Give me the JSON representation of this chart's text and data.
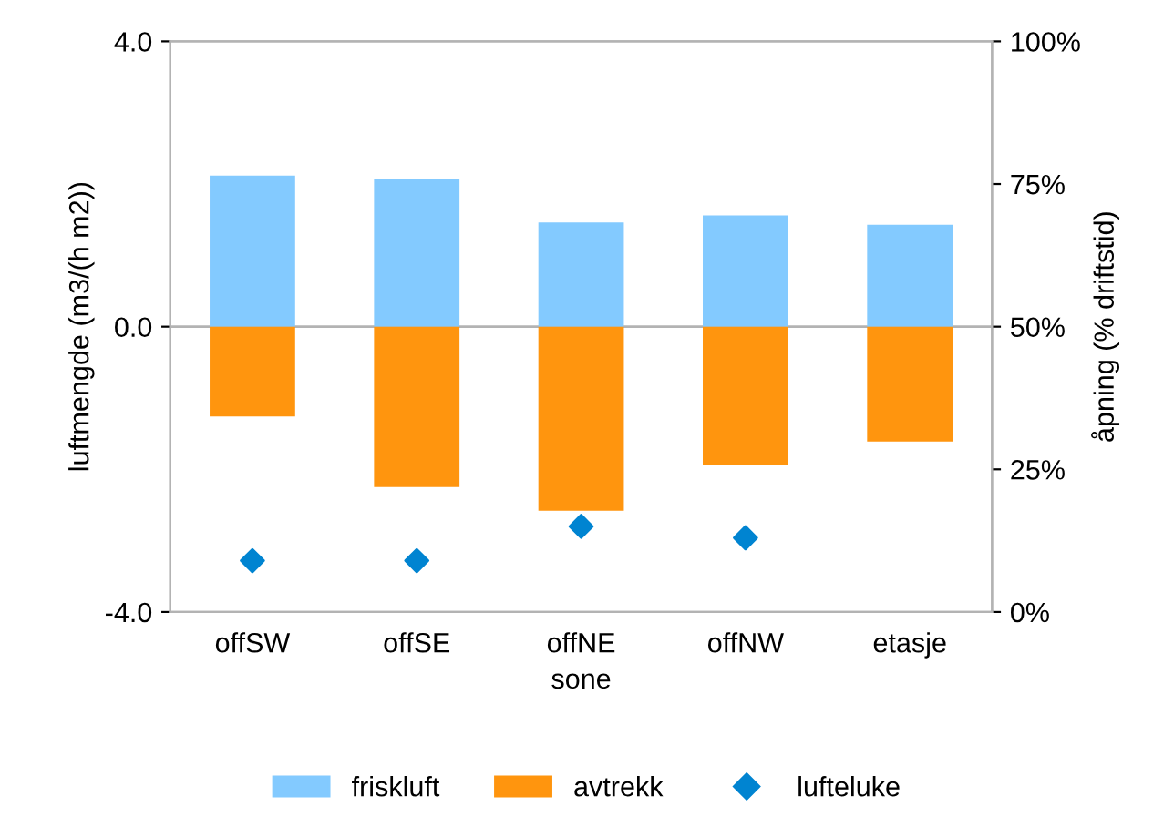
{
  "chart_data": {
    "type": "bar",
    "stacked": true,
    "xlabel": "sone",
    "ylabel": "luftmengde (m3/(h m2))",
    "y2label": "åpning (% driftstid)",
    "categories": [
      "offSW",
      "offSE",
      "offNE",
      "offNW",
      "etasje"
    ],
    "series": [
      {
        "name": "friskluft",
        "color": "#83caff",
        "values": [
          2.12,
          2.07,
          1.46,
          1.56,
          1.43
        ]
      },
      {
        "name": "avtrekk",
        "color": "#ff950e",
        "values": [
          -1.26,
          -2.25,
          -2.58,
          -1.94,
          -1.61
        ]
      },
      {
        "name": "lufteluke",
        "type": "scatter",
        "axis": "y2",
        "marker": "diamond",
        "color": "#0084d1",
        "values": [
          9,
          9,
          15,
          13,
          null
        ]
      }
    ],
    "ylim": [
      -4,
      4
    ],
    "yticks": [
      {
        "value": -4,
        "label": "-4.0"
      },
      {
        "value": 0,
        "label": "0.0"
      },
      {
        "value": 4,
        "label": "4.0"
      }
    ],
    "y2lim": [
      0,
      100
    ],
    "y2ticks": [
      {
        "value": 0,
        "label": "0%"
      },
      {
        "value": 25,
        "label": "25%"
      },
      {
        "value": 50,
        "label": "50%"
      },
      {
        "value": 75,
        "label": "75%"
      },
      {
        "value": 100,
        "label": "100%"
      }
    ],
    "ref_lines": [
      {
        "axis": "y",
        "value": 0,
        "color": "#b3b3b3"
      }
    ],
    "legend": "bottom"
  }
}
